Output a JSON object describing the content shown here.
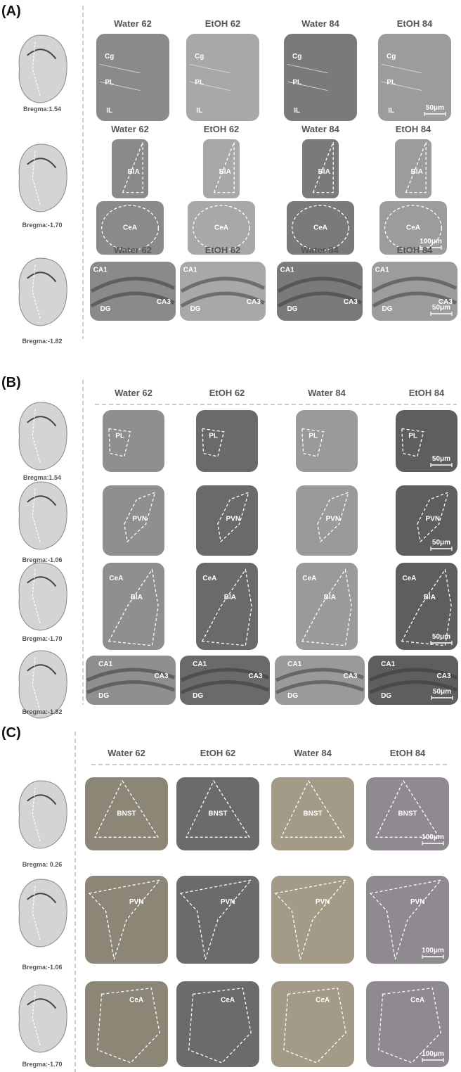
{
  "panels": [
    {
      "label": "(A)",
      "rows": [
        {
          "bregma": "Bregma:1.54",
          "headers": [
            "Water 62",
            "EtOH 62",
            "Water 84",
            "EtOH 84"
          ],
          "tiles": [
            [
              "Cg",
              "PL",
              "IL"
            ],
            [
              "Cg",
              "PL",
              "IL"
            ],
            [
              "Cg",
              "PL",
              "IL"
            ],
            [
              "Cg",
              "PL",
              "IL"
            ]
          ],
          "scale": "50μm"
        },
        {
          "bregma": "Bregma:-1.70",
          "headers": [
            "Water 62",
            "EtOH 62",
            "Water 84",
            "EtOH 84"
          ],
          "tiles": [
            [
              "BlA",
              "CeA"
            ],
            [
              "BlA",
              "CeA"
            ],
            [
              "BlA",
              "CeA"
            ],
            [
              "BlA",
              "CeA"
            ]
          ],
          "scale": "100μm"
        },
        {
          "bregma": "Bregma:-1.82",
          "headers": [
            "Water 62",
            "EtOH 62",
            "Water 84",
            "EtOH 84"
          ],
          "tiles": [
            [
              "CA1",
              "DG",
              "CA3"
            ],
            [
              "CA1",
              "DG",
              "CA3"
            ],
            [
              "CA1",
              "DG",
              "CA3"
            ],
            [
              "CA1",
              "DG",
              "CA3"
            ]
          ],
          "scale": "50μm"
        }
      ]
    },
    {
      "label": "(B)",
      "headers": [
        "Water 62",
        "EtOH 62",
        "Water 84",
        "EtOH 84"
      ],
      "rows": [
        {
          "bregma": "Bregma:1.54",
          "tiles": [
            [
              "PL"
            ],
            [
              "PL"
            ],
            [
              "PL"
            ],
            [
              "PL"
            ]
          ],
          "scale": "50μm"
        },
        {
          "bregma": "Bregma:-1.06",
          "tiles": [
            [
              "PVN"
            ],
            [
              "PVN"
            ],
            [
              "PVN"
            ],
            [
              "PVN"
            ]
          ],
          "scale": "50μm"
        },
        {
          "bregma": "Bregma:-1.70",
          "tiles": [
            [
              "CeA",
              "BlA"
            ],
            [
              "CeA",
              "BlA"
            ],
            [
              "CeA",
              "BlA"
            ],
            [
              "CeA",
              "BlA"
            ]
          ],
          "scale": "50μm"
        },
        {
          "bregma": "Bregma:-1.82",
          "tiles": [
            [
              "CA1",
              "CA3",
              "DG"
            ],
            [
              "CA1",
              "CA3",
              "DG"
            ],
            [
              "CA1",
              "CA3",
              "DG"
            ],
            [
              "CA1",
              "CA3",
              "DG"
            ]
          ],
          "scale": "50μm"
        }
      ]
    },
    {
      "label": "(C)",
      "headers": [
        "Water 62",
        "EtOH 62",
        "Water 84",
        "EtOH 84"
      ],
      "rows": [
        {
          "bregma": "Bregma: 0.26",
          "tiles": [
            [
              "BNST"
            ],
            [
              "BNST"
            ],
            [
              "BNST"
            ],
            [
              "BNST"
            ]
          ],
          "scale": "100μm"
        },
        {
          "bregma": "Bregma:-1.06",
          "tiles": [
            [
              "PVN"
            ],
            [
              "PVN"
            ],
            [
              "PVN"
            ],
            [
              "PVN"
            ]
          ],
          "scale": "100μm"
        },
        {
          "bregma": "Bregma:-1.70",
          "tiles": [
            [
              "CeA"
            ],
            [
              "CeA"
            ],
            [
              "CeA"
            ],
            [
              "CeA"
            ]
          ],
          "scale": "100μm"
        }
      ]
    }
  ]
}
